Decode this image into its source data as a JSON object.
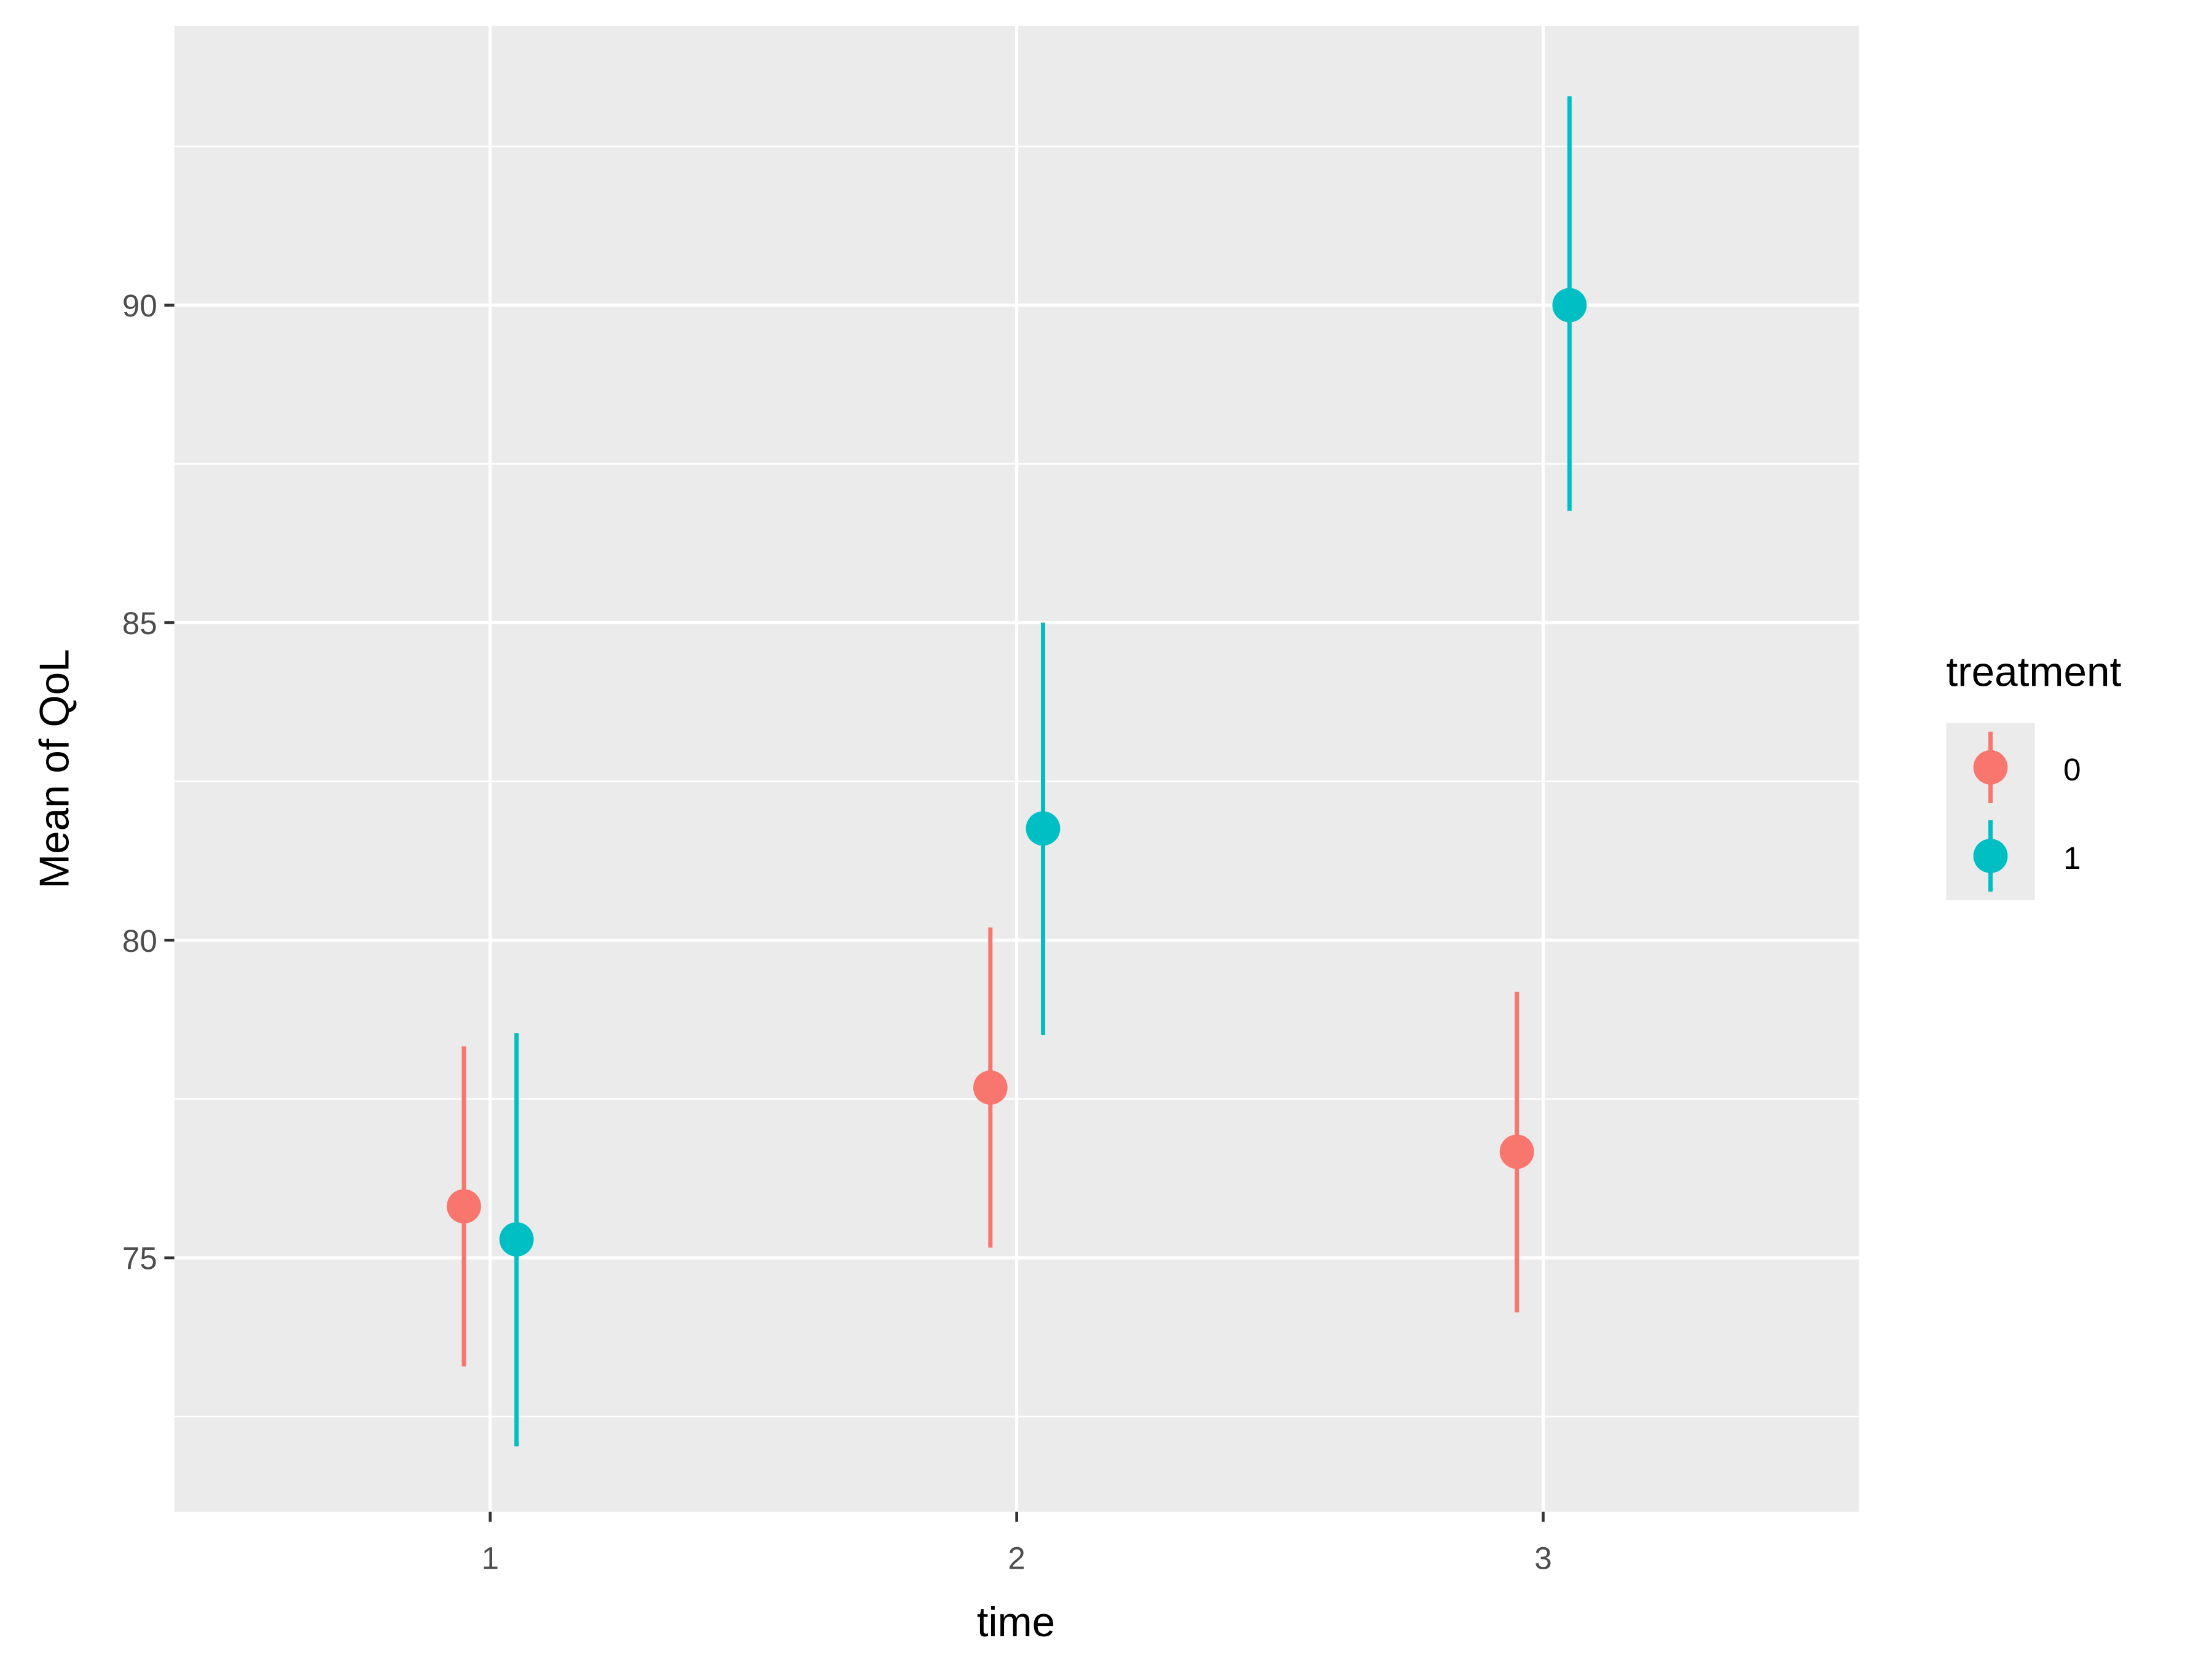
{
  "chart_data": {
    "type": "errorbar-point",
    "x_label": "time",
    "y_label": "Mean of QoL",
    "legend_title": "treatment",
    "legend_position": "right",
    "x": [
      1,
      2,
      3
    ],
    "xlim": [
      0.4,
      3.6
    ],
    "xticks": [
      1,
      2,
      3
    ],
    "ylim": [
      71,
      94.4
    ],
    "yticks": [
      75,
      80,
      85,
      90
    ],
    "grid": true,
    "dodge": 0.05,
    "series": [
      {
        "name": "0",
        "color": "#F8766D",
        "values": [
          75.81,
          77.68,
          76.67
        ],
        "lower": [
          73.29,
          75.16,
          74.14
        ],
        "upper": [
          78.33,
          80.2,
          79.19
        ]
      },
      {
        "name": "1",
        "color": "#00BFC4",
        "values": [
          75.29,
          81.76,
          90.0
        ],
        "lower": [
          72.03,
          78.51,
          86.76
        ],
        "upper": [
          78.54,
          85.0,
          93.29
        ]
      }
    ]
  }
}
